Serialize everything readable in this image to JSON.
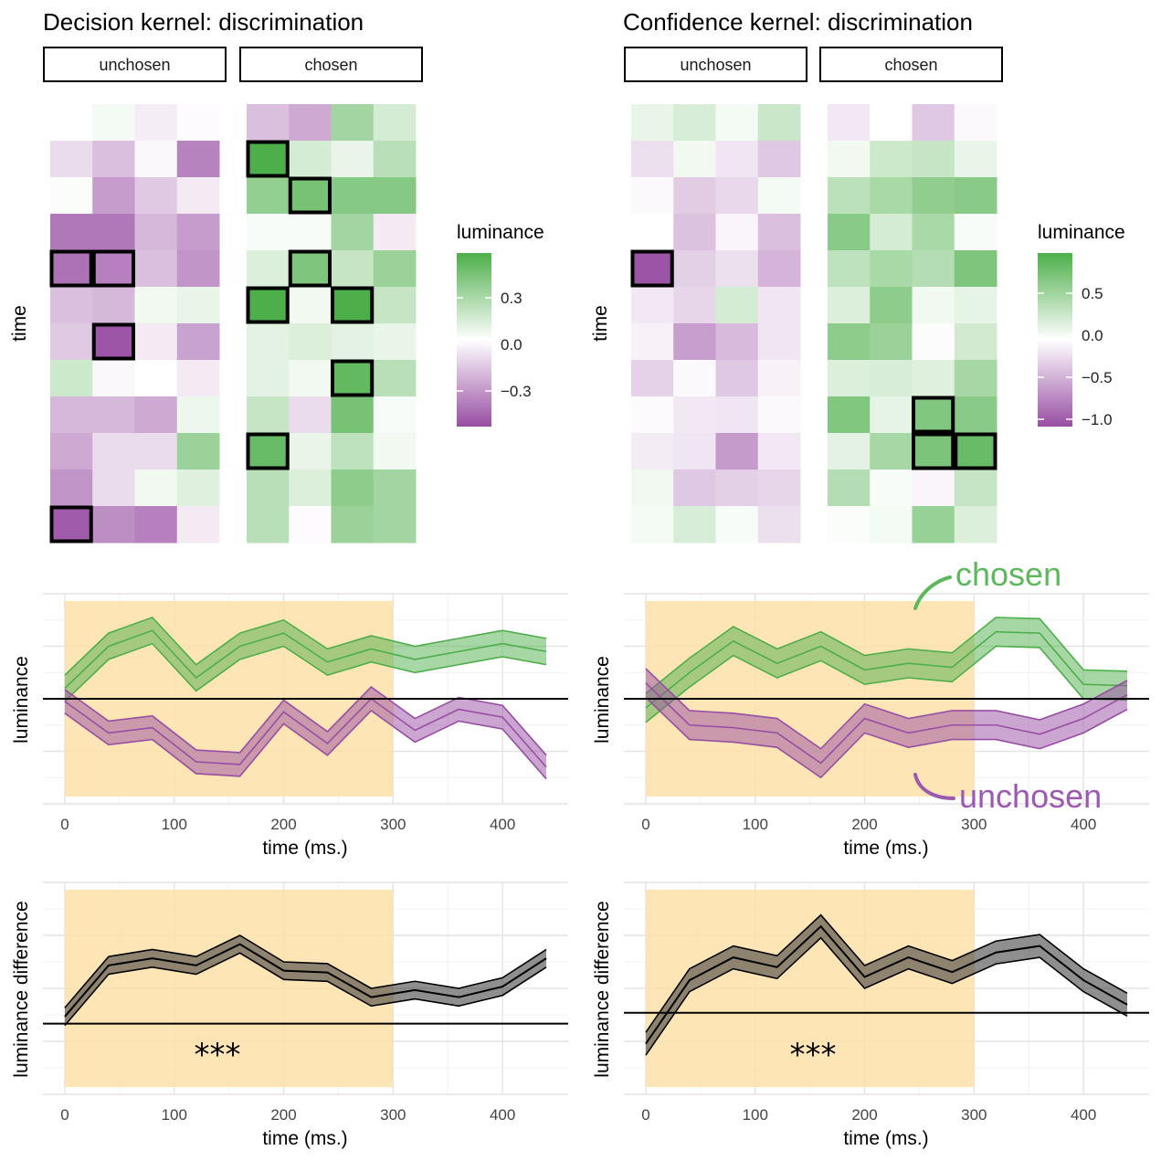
{
  "panels": [
    {
      "id": "decision",
      "title": "Decision kernel: discrimination",
      "strip_labels": [
        "unchosen",
        "chosen"
      ],
      "heat_ylabel": "time",
      "legend": {
        "title": "luminance",
        "ticks": [
          "0.3",
          "0.0",
          "−0.3"
        ]
      }
    },
    {
      "id": "confidence",
      "title": "Confidence kernel: discrimination",
      "strip_labels": [
        "unchosen",
        "chosen"
      ],
      "heat_ylabel": "time",
      "legend": {
        "title": "luminance",
        "ticks": [
          "0.5",
          "0.0",
          "−0.5",
          "−1.0"
        ]
      }
    }
  ],
  "line_axes": {
    "xlabel": "time (ms.)",
    "ylabel_mid": "luminance",
    "ylabel_bottom": "luminance difference",
    "xticks": [
      "0",
      "100",
      "200",
      "300",
      "400"
    ]
  },
  "annotations": {
    "chosen": "chosen",
    "unchosen": "unchosen",
    "significance": "***"
  },
  "colors": {
    "chosen": "#4daf4a",
    "unchosen": "#984ea3",
    "shade": "#fde0a8",
    "difference": "#000000"
  },
  "chart_data": [
    {
      "type": "heatmap",
      "title": "Decision kernel: discrimination",
      "facets": [
        "unchosen",
        "chosen"
      ],
      "ylabel": "time",
      "color_scale": {
        "low": -0.5,
        "high": 0.5,
        "ticks": [
          -0.3,
          0.0,
          0.3
        ]
      },
      "unchosen": [
        [
          0.0,
          0.03,
          -0.05,
          -0.01
        ],
        [
          -0.1,
          -0.18,
          -0.02,
          -0.35
        ],
        [
          0.01,
          -0.28,
          -0.15,
          -0.06
        ],
        [
          -0.38,
          -0.38,
          -0.2,
          -0.28
        ],
        [
          -0.4,
          -0.36,
          -0.18,
          -0.3
        ],
        [
          -0.18,
          -0.2,
          0.04,
          0.06
        ],
        [
          -0.15,
          -0.48,
          -0.06,
          -0.26
        ],
        [
          0.14,
          -0.02,
          0.0,
          -0.06
        ],
        [
          -0.2,
          -0.2,
          -0.24,
          0.05
        ],
        [
          -0.24,
          -0.1,
          -0.1,
          0.28
        ],
        [
          -0.3,
          -0.1,
          0.04,
          0.09
        ],
        [
          -0.46,
          -0.32,
          -0.36,
          -0.06
        ]
      ],
      "chosen": [
        [
          -0.18,
          -0.24,
          0.26,
          0.12
        ],
        [
          0.5,
          0.12,
          0.06,
          0.2
        ],
        [
          0.3,
          0.38,
          0.34,
          0.34
        ],
        [
          0.02,
          0.02,
          0.26,
          -0.06
        ],
        [
          0.1,
          0.36,
          0.16,
          0.28
        ],
        [
          0.56,
          0.04,
          0.54,
          0.16
        ],
        [
          0.08,
          0.1,
          0.08,
          0.06
        ],
        [
          0.08,
          0.04,
          0.44,
          0.2
        ],
        [
          0.16,
          -0.1,
          0.38,
          0.02
        ],
        [
          0.42,
          0.06,
          0.18,
          0.04
        ],
        [
          0.2,
          0.1,
          0.32,
          0.26
        ],
        [
          0.2,
          -0.01,
          0.28,
          0.26
        ]
      ],
      "highlighted": {
        "unchosen": [
          [
            4,
            0
          ],
          [
            4,
            1
          ],
          [
            6,
            1
          ],
          [
            11,
            0
          ]
        ],
        "chosen": [
          [
            1,
            0
          ],
          [
            2,
            1
          ],
          [
            4,
            1
          ],
          [
            5,
            0
          ],
          [
            5,
            2
          ],
          [
            7,
            2
          ],
          [
            9,
            0
          ]
        ]
      }
    },
    {
      "type": "heatmap",
      "title": "Confidence kernel: discrimination",
      "facets": [
        "unchosen",
        "chosen"
      ],
      "ylabel": "time",
      "color_scale": {
        "low": -1.1,
        "high": 1.0,
        "ticks": [
          -1.0,
          -0.5,
          0.0,
          0.5
        ]
      },
      "unchosen": [
        [
          0.12,
          0.22,
          0.06,
          0.3
        ],
        [
          -0.2,
          0.08,
          -0.16,
          -0.34
        ],
        [
          -0.04,
          -0.32,
          -0.24,
          0.06
        ],
        [
          0.0,
          -0.38,
          -0.06,
          -0.4
        ],
        [
          -1.06,
          -0.3,
          -0.2,
          -0.46
        ],
        [
          -0.14,
          -0.26,
          0.24,
          -0.16
        ],
        [
          -0.08,
          -0.6,
          -0.42,
          -0.16
        ],
        [
          -0.28,
          -0.04,
          -0.34,
          -0.08
        ],
        [
          -0.03,
          -0.14,
          -0.16,
          -0.04
        ],
        [
          -0.12,
          -0.16,
          -0.62,
          -0.14
        ],
        [
          0.08,
          -0.34,
          -0.3,
          -0.26
        ],
        [
          0.06,
          0.22,
          0.04,
          -0.2
        ]
      ],
      "chosen": [
        [
          -0.14,
          0.0,
          -0.34,
          -0.04
        ],
        [
          0.08,
          0.28,
          0.32,
          0.12
        ],
        [
          0.38,
          0.48,
          0.62,
          0.66
        ],
        [
          0.66,
          0.24,
          0.48,
          0.04
        ],
        [
          0.36,
          0.48,
          0.42,
          0.72
        ],
        [
          0.2,
          0.64,
          0.08,
          0.14
        ],
        [
          0.64,
          0.56,
          -0.02,
          0.26
        ],
        [
          0.2,
          0.22,
          0.18,
          0.5
        ],
        [
          0.7,
          0.14,
          0.7,
          0.66
        ],
        [
          0.16,
          0.5,
          0.74,
          0.84
        ],
        [
          0.42,
          0.04,
          -0.06,
          0.32
        ],
        [
          0.02,
          0.06,
          0.58,
          0.2
        ]
      ],
      "highlighted": {
        "unchosen": [
          [
            4,
            0
          ]
        ],
        "chosen": [
          [
            8,
            2
          ],
          [
            9,
            2
          ],
          [
            9,
            3
          ]
        ]
      }
    },
    {
      "type": "line",
      "panel": "decision",
      "xlabel": "time (ms.)",
      "ylabel": "luminance",
      "xlim": [
        -20,
        460
      ],
      "ylim": [
        -0.4,
        0.4
      ],
      "x": [
        0,
        40,
        80,
        120,
        160,
        200,
        240,
        280,
        320,
        360,
        400,
        440
      ],
      "shaded_region": [
        0,
        300
      ],
      "series": [
        {
          "name": "chosen",
          "values": [
            0.04,
            0.2,
            0.26,
            0.08,
            0.2,
            0.25,
            0.14,
            0.19,
            0.15,
            0.18,
            0.21,
            0.18
          ],
          "se": 0.05
        },
        {
          "name": "unchosen",
          "values": [
            -0.01,
            -0.13,
            -0.11,
            -0.24,
            -0.25,
            -0.05,
            -0.17,
            0.0,
            -0.12,
            -0.04,
            -0.07,
            -0.26
          ],
          "se": 0.045
        }
      ]
    },
    {
      "type": "line",
      "panel": "confidence",
      "xlabel": "time (ms.)",
      "ylabel": "luminance",
      "xlim": [
        -20,
        460
      ],
      "ylim": [
        -0.8,
        0.8
      ],
      "x": [
        0,
        40,
        80,
        120,
        160,
        200,
        240,
        280,
        320,
        360,
        400,
        440
      ],
      "shaded_region": [
        0,
        300
      ],
      "series": [
        {
          "name": "chosen",
          "values": [
            -0.07,
            0.2,
            0.44,
            0.27,
            0.4,
            0.22,
            0.27,
            0.24,
            0.51,
            0.5,
            0.11,
            0.1
          ],
          "se": 0.11
        },
        {
          "name": "unchosen",
          "values": [
            0.12,
            -0.2,
            -0.22,
            -0.26,
            -0.49,
            -0.15,
            -0.26,
            -0.2,
            -0.2,
            -0.27,
            -0.15,
            0.03
          ],
          "se": 0.11
        }
      ]
    },
    {
      "type": "line",
      "panel": "decision",
      "xlabel": "time (ms.)",
      "ylabel": "luminance difference",
      "xlim": [
        -20,
        460
      ],
      "ylim": [
        -0.4,
        0.8
      ],
      "x": [
        0,
        40,
        80,
        120,
        160,
        200,
        240,
        280,
        320,
        360,
        400,
        440
      ],
      "shaded_region": [
        0,
        300
      ],
      "significance": "***",
      "series": [
        {
          "name": "difference",
          "values": [
            0.04,
            0.33,
            0.37,
            0.33,
            0.45,
            0.3,
            0.29,
            0.15,
            0.19,
            0.15,
            0.21,
            0.37
          ],
          "se": 0.05
        }
      ]
    },
    {
      "type": "line",
      "panel": "confidence",
      "xlabel": "time (ms.)",
      "ylabel": "luminance difference",
      "xlim": [
        -20,
        460
      ],
      "ylim": [
        -1.0,
        1.6
      ],
      "x": [
        0,
        40,
        80,
        120,
        160,
        200,
        240,
        280,
        320,
        360,
        400,
        440
      ],
      "shaded_region": [
        0,
        300
      ],
      "significance": "***",
      "series": [
        {
          "name": "difference",
          "values": [
            -0.38,
            0.4,
            0.68,
            0.56,
            1.06,
            0.44,
            0.68,
            0.5,
            0.74,
            0.82,
            0.4,
            0.1
          ],
          "se": 0.14
        }
      ]
    }
  ]
}
